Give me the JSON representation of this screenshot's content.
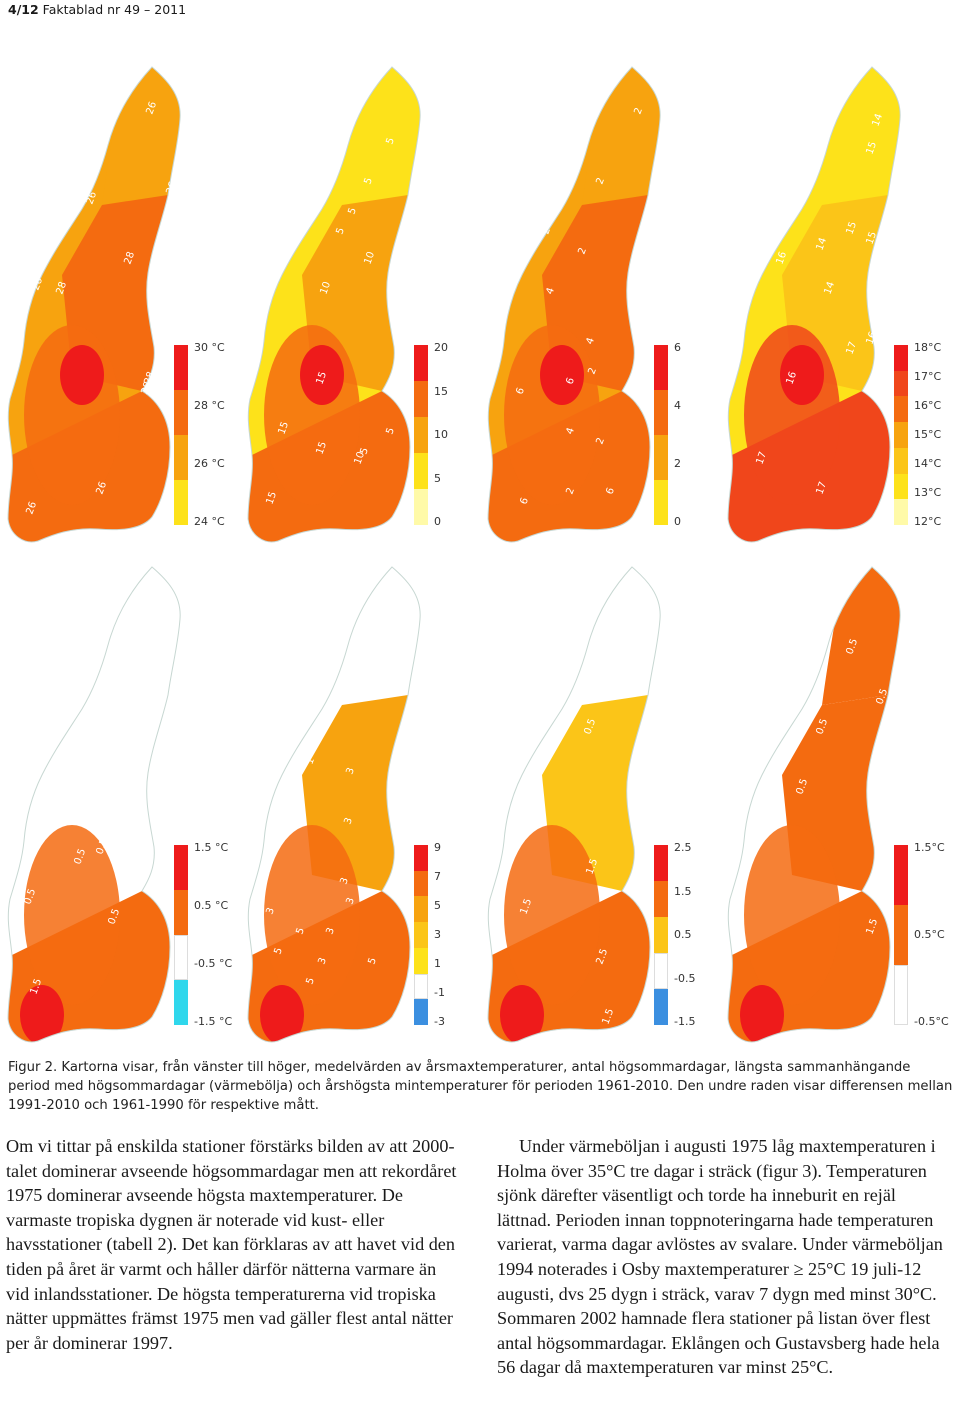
{
  "header": {
    "page": "4/12",
    "title": "Faktablad nr 49 – 2011"
  },
  "maps": [
    {
      "id": "top-1",
      "legend": [
        "30 °C",
        "28 °C",
        "26 °C",
        "24 °C"
      ],
      "colors": [
        "#ee1b1b",
        "#f46b10",
        "#f7a30f",
        "#fde21a"
      ],
      "labels": [
        "26",
        "26",
        "26",
        "28",
        "28",
        "26",
        "28",
        "26",
        "26",
        "28"
      ]
    },
    {
      "id": "top-2",
      "legend": [
        "20",
        "15",
        "10",
        "5",
        "0"
      ],
      "colors": [
        "#ee1b1b",
        "#f46b10",
        "#f7a30f",
        "#fde21a",
        "#fffaa8"
      ],
      "labels": [
        "5",
        "5",
        "5",
        "5",
        "10",
        "10",
        "15",
        "15",
        "15",
        "5",
        "5",
        "10",
        "15"
      ]
    },
    {
      "id": "top-3",
      "legend": [
        "6",
        "4",
        "2",
        "0"
      ],
      "colors": [
        "#ee1b1b",
        "#f46b10",
        "#f7a30f",
        "#fde21a"
      ],
      "labels": [
        "2",
        "2",
        "2",
        "2",
        "4",
        "4",
        "2",
        "6",
        "6",
        "4",
        "2",
        "6",
        "2",
        "6"
      ]
    },
    {
      "id": "top-4",
      "legend": [
        "18°C",
        "17°C",
        "16°C",
        "15°C",
        "14°C",
        "13°C",
        "12°C"
      ],
      "colors": [
        "#ee1b1b",
        "#f0461b",
        "#f46b10",
        "#f7a30f",
        "#fbc518",
        "#fde21a",
        "#fffaa8"
      ],
      "labels": [
        "14",
        "15",
        "16",
        "14",
        "15",
        "15",
        "16",
        "17",
        "16",
        "17",
        "17",
        "14"
      ]
    },
    {
      "id": "bottom-1",
      "legend": [
        "1.5 °C",
        "0.5 °C",
        "-0.5 °C",
        "-1.5 °C"
      ],
      "colors": [
        "#ee1b1b",
        "#f46b10",
        "#ffffff",
        "#2fd7ec"
      ],
      "labels": [
        "0.5",
        "0.5",
        "0.5",
        "0.5",
        "1.5"
      ]
    },
    {
      "id": "bottom-2",
      "legend": [
        "9",
        "7",
        "5",
        "3",
        "1",
        "-1",
        "-3"
      ],
      "colors": [
        "#ee1b1b",
        "#f46b10",
        "#f7a30f",
        "#fbc518",
        "#fde21a",
        "#ffffff",
        "#3b8fe0"
      ],
      "labels": [
        "1",
        "1",
        "1",
        "3",
        "3",
        "3",
        "3",
        "5",
        "3",
        "3",
        "5",
        "3",
        "5",
        "5"
      ]
    },
    {
      "id": "bottom-3",
      "legend": [
        "2.5",
        "1.5",
        "0.5",
        "-0.5",
        "-1.5"
      ],
      "colors": [
        "#ee1b1b",
        "#f46b10",
        "#fbc518",
        "#ffffff",
        "#3b8fe0"
      ],
      "labels": [
        "-0.5",
        "0.5",
        "0.5",
        "1.5",
        "1.5",
        "2.5",
        "1.5"
      ]
    },
    {
      "id": "bottom-4",
      "legend": [
        "1.5°C",
        "0.5°C",
        "-0.5°C"
      ],
      "colors": [
        "#ee1b1b",
        "#f46b10",
        "#ffffff"
      ],
      "labels": [
        "0.5",
        "0.5",
        "0.5",
        "0.5",
        "0.5",
        "0.5",
        "1.5"
      ]
    }
  ],
  "caption": "Figur 2. Kartorna visar, från vänster till höger, medelvärden av årsmaxtemperaturer, antal högsommardagar, längsta sammanhängande period med högsommardagar (värmebölja) och årshögsta mintemperaturer för perioden 1961-2010. Den undre raden visar differensen mellan 1991-2010 och 1961-1990 för respektive mått.",
  "body": {
    "col1": "Om vi tittar på enskilda stationer förstärks bilden av att 2000-talet dominerar avseende högsommardagar men att rekordåret 1975 dominerar avseende högsta maxtemperaturer. De varmaste tropiska dygnen är noterade vid kust- eller havsstationer (tabell 2). Det kan förklaras av att havet vid den tiden på året är varmt och håller därför nätterna varmare än vid inlandsstationer. De högsta temperaturerna vid tropiska nätter uppmättes främst 1975 men vad gäller flest antal nätter per år dominerar 1997.",
    "col2": "Under värmeböljan i augusti 1975 låg maxtemperaturen i Holma över 35°C tre dagar i sträck (figur 3). Temperaturen sjönk därefter väsentligt och torde ha inneburit en rejäl lättnad. Perioden innan toppnoteringarna hade temperaturen varierat, varma dagar avlöstes av svalare. Under värmeböljan 1994 noterades i Osby maxtemperaturer ≥ 25°C 19 juli-12 augusti, dvs 25 dygn i sträck, varav 7 dygn med minst 30°C. Sommaren 2002 hamnade flera stationer på listan över flest antal högsommardagar. Eklången och Gustavsberg hade hela 56 dagar då maxtemperaturen var minst 25°C."
  }
}
